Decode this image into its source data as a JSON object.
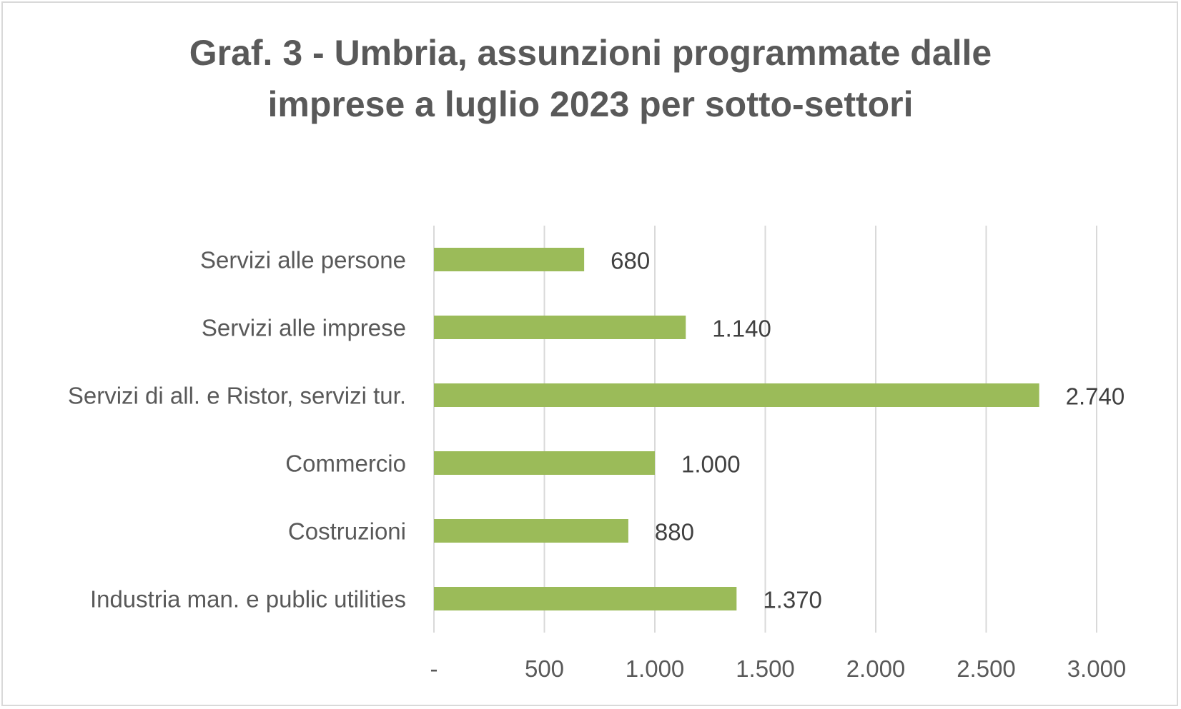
{
  "chart_data": {
    "type": "bar",
    "orientation": "horizontal",
    "title": "Graf. 3 - Umbria, assunzioni programmate dalle imprese a luglio 2023 per sotto-settori",
    "title_lines": [
      "Graf. 3 - Umbria, assunzioni programmate dalle",
      "imprese a luglio 2023 per sotto-settori"
    ],
    "categories": [
      "Servizi alle persone",
      "Servizi alle imprese",
      "Servizi di all. e Ristor, servizi tur.",
      "Commercio",
      "Costruzioni",
      "Industria man. e public utilities"
    ],
    "values": [
      680,
      1140,
      2740,
      1000,
      880,
      1370
    ],
    "data_labels": [
      "680",
      "1.140",
      "2.740",
      "1.000",
      "880",
      "1.370"
    ],
    "x_ticks": [
      0,
      500,
      1000,
      1500,
      2000,
      2500,
      3000
    ],
    "x_tick_labels": [
      "-",
      "500",
      "1.000",
      "1.500",
      "2.000",
      "2.500",
      "3.000"
    ],
    "xlim": [
      0,
      3000
    ],
    "xlabel": "",
    "ylabel": "",
    "grid": "vertical",
    "legend": "none",
    "bar_color": "#9bbb59",
    "grid_color": "#d9d9d9",
    "text_color": "#595959"
  }
}
